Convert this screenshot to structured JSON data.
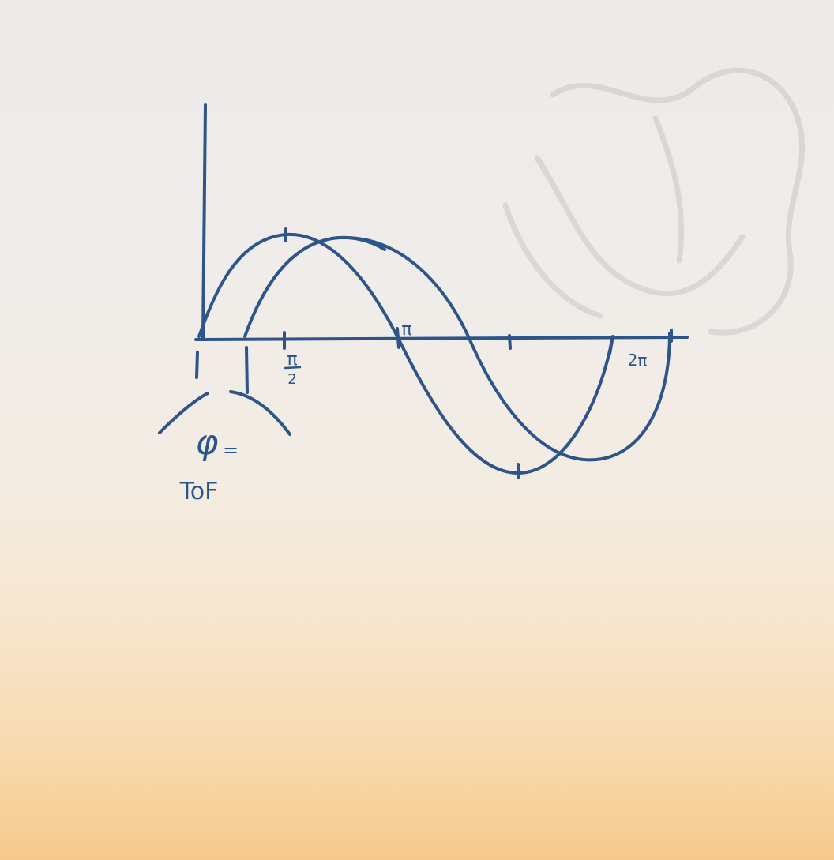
{
  "diagram": {
    "labels": {
      "half_pi": "π/2",
      "half_pi_numerator": "π",
      "half_pi_denominator": "2",
      "pi": "π",
      "two_pi": "2π",
      "phi": "φ",
      "equals": "=",
      "tof": "ToF"
    },
    "ink_color": "#2e5589",
    "curves": [
      "reference-sine-wave",
      "phase-shifted-sine-wave"
    ]
  }
}
